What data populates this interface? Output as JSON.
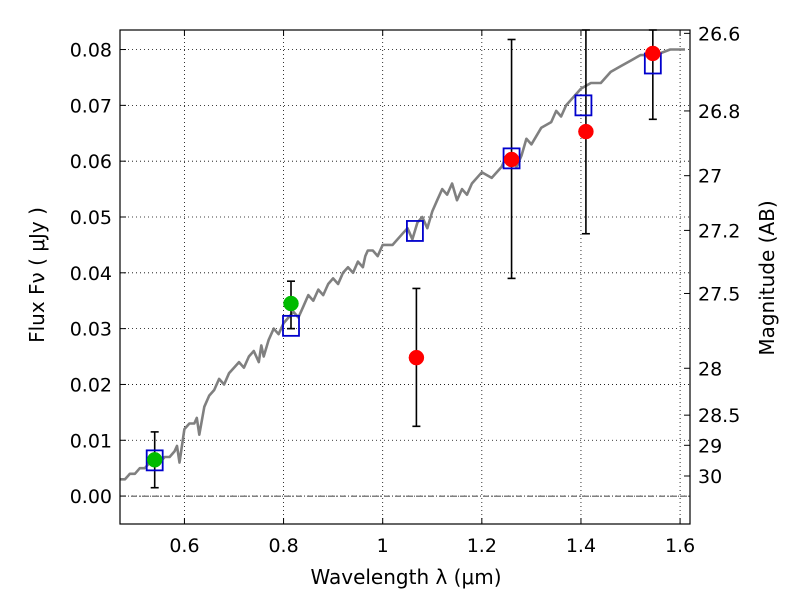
{
  "chart_data": {
    "type": "scatter",
    "title": "",
    "xlabel": "Wavelength  λ (μm)",
    "ylabel": "Flux  Fν  ( μJy )",
    "y2label": "Magnitude (AB)",
    "xlim": [
      0.47,
      1.62
    ],
    "ylim": [
      -0.005,
      0.0835
    ],
    "grid": true,
    "x_ticks": [
      {
        "value": 0.6,
        "label": "0.6"
      },
      {
        "value": 0.8,
        "label": "0.8"
      },
      {
        "value": 1.0,
        "label": "1"
      },
      {
        "value": 1.2,
        "label": "1.2"
      },
      {
        "value": 1.4,
        "label": "1.4"
      },
      {
        "value": 1.6,
        "label": "1.6"
      }
    ],
    "y_ticks": [
      {
        "value": 0.0,
        "label": "0.00"
      },
      {
        "value": 0.01,
        "label": "0.01"
      },
      {
        "value": 0.02,
        "label": "0.02"
      },
      {
        "value": 0.03,
        "label": "0.03"
      },
      {
        "value": 0.04,
        "label": "0.04"
      },
      {
        "value": 0.05,
        "label": "0.05"
      },
      {
        "value": 0.06,
        "label": "0.06"
      },
      {
        "value": 0.07,
        "label": "0.07"
      },
      {
        "value": 0.08,
        "label": "0.08"
      }
    ],
    "y2_ticks": [
      {
        "flux": 0.0829,
        "label": "26.6"
      },
      {
        "flux": 0.069,
        "label": "26.8"
      },
      {
        "flux": 0.0574,
        "label": "27"
      },
      {
        "flux": 0.0476,
        "label": "27.2"
      },
      {
        "flux": 0.0363,
        "label": "27.5"
      },
      {
        "flux": 0.0229,
        "label": "28"
      },
      {
        "flux": 0.0145,
        "label": "28.5"
      },
      {
        "flux": 0.0091,
        "label": "29"
      },
      {
        "flux": 0.0036,
        "label": "30"
      }
    ],
    "model_sed": {
      "color": "#808080",
      "x": [
        0.47,
        0.48,
        0.49,
        0.5,
        0.51,
        0.52,
        0.53,
        0.54,
        0.55,
        0.56,
        0.57,
        0.58,
        0.585,
        0.59,
        0.6,
        0.61,
        0.62,
        0.625,
        0.63,
        0.64,
        0.65,
        0.66,
        0.67,
        0.68,
        0.69,
        0.7,
        0.71,
        0.72,
        0.73,
        0.74,
        0.75,
        0.755,
        0.76,
        0.77,
        0.78,
        0.79,
        0.8,
        0.81,
        0.82,
        0.83,
        0.84,
        0.85,
        0.86,
        0.87,
        0.88,
        0.89,
        0.9,
        0.91,
        0.92,
        0.93,
        0.94,
        0.95,
        0.96,
        0.965,
        0.97,
        0.98,
        0.99,
        1.0,
        1.02,
        1.04,
        1.05,
        1.06,
        1.07,
        1.08,
        1.09,
        1.1,
        1.11,
        1.12,
        1.13,
        1.14,
        1.15,
        1.16,
        1.17,
        1.18,
        1.2,
        1.22,
        1.24,
        1.25,
        1.26,
        1.27,
        1.28,
        1.29,
        1.3,
        1.32,
        1.34,
        1.35,
        1.36,
        1.37,
        1.38,
        1.39,
        1.4,
        1.42,
        1.44,
        1.46,
        1.48,
        1.5,
        1.52,
        1.55,
        1.58,
        1.61
      ],
      "y": [
        0.003,
        0.003,
        0.004,
        0.004,
        0.005,
        0.005,
        0.006,
        0.006,
        0.006,
        0.007,
        0.007,
        0.008,
        0.009,
        0.006,
        0.012,
        0.013,
        0.013,
        0.014,
        0.011,
        0.016,
        0.018,
        0.019,
        0.021,
        0.02,
        0.022,
        0.023,
        0.024,
        0.023,
        0.025,
        0.026,
        0.024,
        0.027,
        0.025,
        0.028,
        0.03,
        0.029,
        0.031,
        0.032,
        0.033,
        0.032,
        0.034,
        0.036,
        0.035,
        0.037,
        0.036,
        0.038,
        0.039,
        0.038,
        0.04,
        0.041,
        0.04,
        0.042,
        0.041,
        0.043,
        0.044,
        0.044,
        0.043,
        0.045,
        0.045,
        0.047,
        0.048,
        0.046,
        0.049,
        0.05,
        0.048,
        0.051,
        0.053,
        0.055,
        0.054,
        0.056,
        0.053,
        0.055,
        0.054,
        0.056,
        0.058,
        0.057,
        0.059,
        0.061,
        0.06,
        0.059,
        0.061,
        0.064,
        0.063,
        0.066,
        0.067,
        0.069,
        0.068,
        0.07,
        0.071,
        0.072,
        0.073,
        0.074,
        0.074,
        0.076,
        0.077,
        0.078,
        0.079,
        0.079,
        0.08,
        0.08
      ]
    },
    "series": [
      {
        "marker": "open-square",
        "color": "#0000cc",
        "points": [
          {
            "x": 0.54,
            "y": 0.0064
          },
          {
            "x": 0.815,
            "y": 0.0305
          },
          {
            "x": 1.065,
            "y": 0.0475
          },
          {
            "x": 1.26,
            "y": 0.0605
          },
          {
            "x": 1.405,
            "y": 0.07
          },
          {
            "x": 1.545,
            "y": 0.0775
          }
        ]
      },
      {
        "marker": "filled-circle",
        "color": "#00bb00",
        "points": [
          {
            "x": 0.54,
            "y": 0.0065,
            "err_low": 0.0015,
            "err_high": 0.0115
          },
          {
            "x": 0.815,
            "y": 0.0345,
            "err_low": 0.03,
            "err_high": 0.0385
          }
        ]
      },
      {
        "marker": "filled-circle",
        "color": "#ff0000",
        "points": [
          {
            "x": 1.068,
            "y": 0.0248,
            "err_low": 0.0125,
            "err_high": 0.0372
          },
          {
            "x": 1.26,
            "y": 0.0603,
            "err_low": 0.039,
            "err_high": 0.0818
          },
          {
            "x": 1.41,
            "y": 0.0653,
            "err_low": 0.047,
            "err_high": 0.0835
          },
          {
            "x": 1.545,
            "y": 0.0793,
            "err_low": 0.0675,
            "err_high": 0.0835
          }
        ]
      }
    ]
  }
}
